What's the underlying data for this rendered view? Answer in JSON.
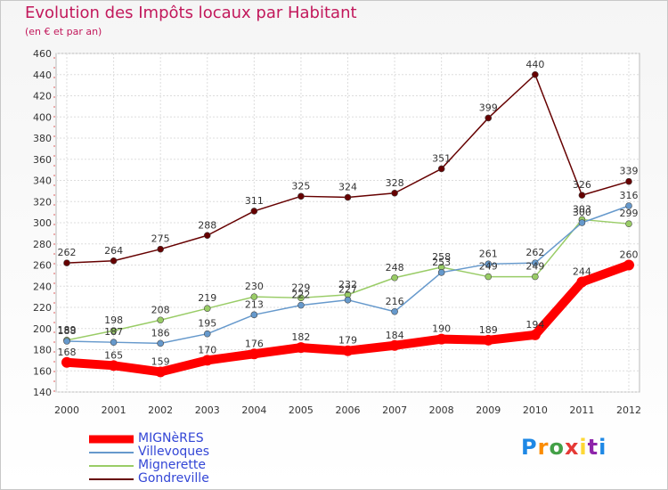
{
  "title": "Evolution des Impôts locaux par Habitant",
  "subtitle": "(en € et par an)",
  "logo": {
    "text": "Proxiti",
    "colors": [
      "#1e88e5",
      "#fb8c00",
      "#43a047",
      "#e53935",
      "#fdd835",
      "#8e24aa",
      "#1e88e5"
    ]
  },
  "chart_data": {
    "type": "line",
    "title": "Evolution des Impôts locaux par Habitant",
    "subtitle": "(en € et par an)",
    "x": [
      "2000",
      "2001",
      "2002",
      "2003",
      "2004",
      "2005",
      "2006",
      "2007",
      "2008",
      "2009",
      "2010",
      "2011",
      "2012"
    ],
    "ylim": [
      140,
      460
    ],
    "yticks": [
      140,
      160,
      180,
      200,
      220,
      240,
      260,
      280,
      300,
      320,
      340,
      360,
      380,
      400,
      420,
      440,
      460
    ],
    "grid": true,
    "legend_position": "bottom-left",
    "series": [
      {
        "name": "MIGNèRES",
        "color": "#ff0000",
        "values": [
          168,
          165,
          159,
          170,
          176,
          182,
          179,
          184,
          190,
          189,
          194,
          244,
          260
        ]
      },
      {
        "name": "Villevoques",
        "color": "#6699cc",
        "values": [
          188,
          187,
          186,
          195,
          213,
          222,
          227,
          216,
          253,
          261,
          262,
          300,
          316
        ]
      },
      {
        "name": "Mignerette",
        "color": "#99cc66",
        "values": [
          189,
          198,
          208,
          219,
          230,
          229,
          232,
          248,
          258,
          249,
          249,
          303,
          299
        ]
      },
      {
        "name": "Gondreville",
        "color": "#660000",
        "values": [
          262,
          264,
          275,
          288,
          311,
          325,
          324,
          328,
          351,
          399,
          440,
          326,
          339
        ]
      }
    ]
  }
}
